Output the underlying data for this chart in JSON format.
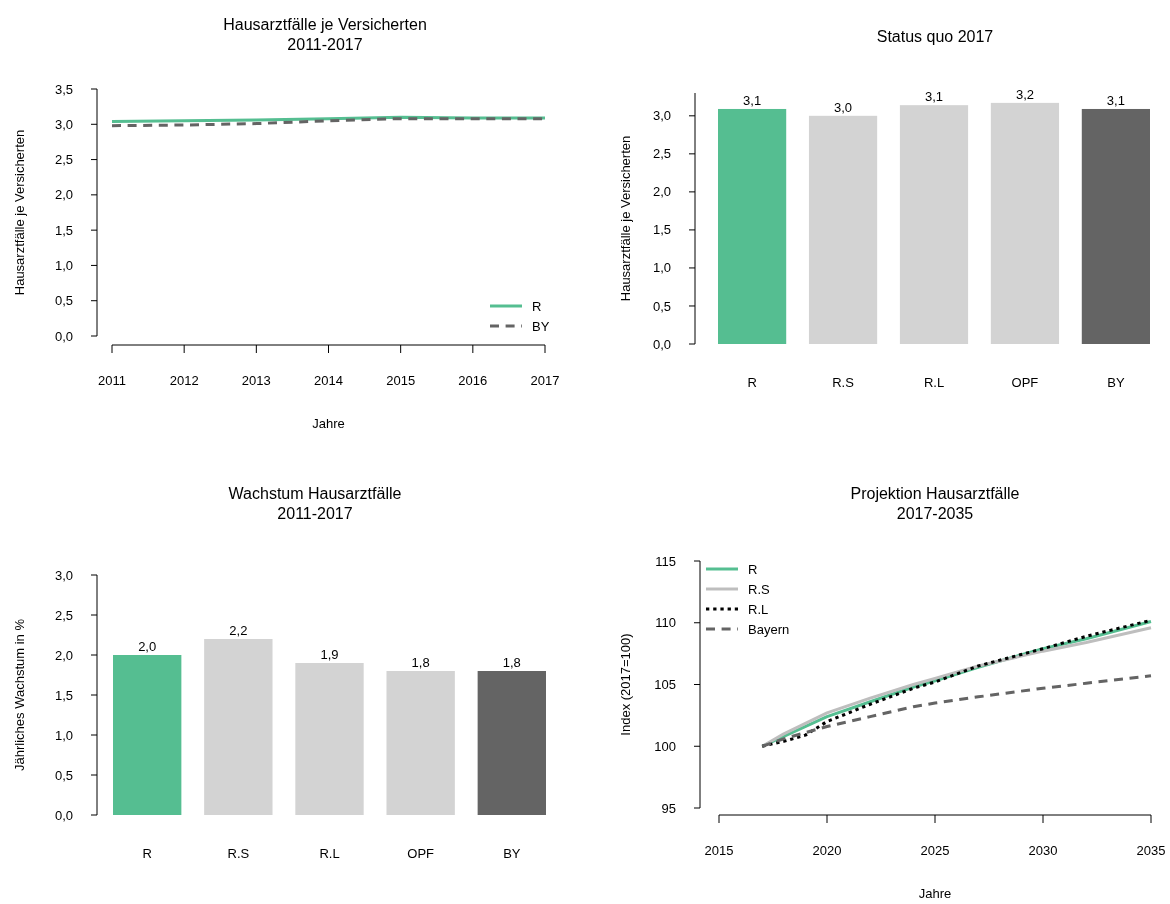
{
  "chart_data": [
    {
      "type": "line",
      "title": "Hausarztfälle je Versicherten",
      "subtitle": "2011-2017",
      "xlabel": "Jahre",
      "ylabel": "Hausarztfälle je Versicherten",
      "x": [
        2011,
        2012,
        2013,
        2014,
        2015,
        2016,
        2017
      ],
      "xlim": [
        2011,
        2017
      ],
      "xticks": [
        2011,
        2012,
        2013,
        2014,
        2015,
        2016,
        2017
      ],
      "ylim": [
        0,
        3.5
      ],
      "yticks": [
        {
          "value": 0,
          "label": "0,0"
        },
        {
          "value": 0.5,
          "label": "0,5"
        },
        {
          "value": 1,
          "label": "1,0"
        },
        {
          "value": 1.5,
          "label": "1,5"
        },
        {
          "value": 2,
          "label": "2,0"
        },
        {
          "value": 2.5,
          "label": "2,5"
        },
        {
          "value": 3,
          "label": "3,0"
        },
        {
          "value": 3.5,
          "label": "3,5"
        }
      ],
      "grid": false,
      "legend": "bottom right",
      "series": [
        {
          "name": "R",
          "color": "#55be91",
          "line_style": "solid",
          "values": [
            3.04,
            3.05,
            3.06,
            3.08,
            3.1,
            3.09,
            3.09
          ]
        },
        {
          "name": "BY",
          "color": "#646464",
          "line_style": "dashed",
          "values": [
            2.98,
            2.99,
            3.01,
            3.05,
            3.08,
            3.08,
            3.08
          ]
        }
      ]
    },
    {
      "type": "bar",
      "title": "Status quo 2017",
      "ylabel": "Hausarztfälle je Versicherten",
      "categories": [
        "R",
        "R.S",
        "R.L",
        "OPF",
        "BY"
      ],
      "values": [
        3.09,
        3.0,
        3.14,
        3.17,
        3.09
      ],
      "value_labels": [
        "3,1",
        "3,0",
        "3,1",
        "3,2",
        "3,1"
      ],
      "colors": [
        "#55be91",
        "#d3d3d3",
        "#d3d3d3",
        "#d3d3d3",
        "#646464"
      ],
      "ylim": [
        0,
        3.3
      ],
      "yticks": [
        {
          "value": 0,
          "label": "0,0"
        },
        {
          "value": 0.5,
          "label": "0,5"
        },
        {
          "value": 1,
          "label": "1,0"
        },
        {
          "value": 1.5,
          "label": "1,5"
        },
        {
          "value": 2,
          "label": "2,0"
        },
        {
          "value": 2.5,
          "label": "2,5"
        },
        {
          "value": 3,
          "label": "3,0"
        }
      ],
      "grid": false
    },
    {
      "type": "bar",
      "title": "Wachstum Hausarztfälle",
      "subtitle": "2011-2017",
      "ylabel": "Jährliches Wachstum in %",
      "categories": [
        "R",
        "R.S",
        "R.L",
        "OPF",
        "BY"
      ],
      "values": [
        2.0,
        2.2,
        1.9,
        1.8,
        1.8
      ],
      "value_labels": [
        "2,0",
        "2,2",
        "1,9",
        "1,8",
        "1,8"
      ],
      "colors": [
        "#55be91",
        "#d3d3d3",
        "#d3d3d3",
        "#d3d3d3",
        "#646464"
      ],
      "ylim": [
        0,
        3
      ],
      "yticks": [
        {
          "value": 0,
          "label": "0,0"
        },
        {
          "value": 0.5,
          "label": "0,5"
        },
        {
          "value": 1,
          "label": "1,0"
        },
        {
          "value": 1.5,
          "label": "1,5"
        },
        {
          "value": 2,
          "label": "2,0"
        },
        {
          "value": 2.5,
          "label": "2,5"
        },
        {
          "value": 3,
          "label": "3,0"
        }
      ],
      "grid": false
    },
    {
      "type": "line",
      "title": "Projektion Hausarztfälle",
      "subtitle": "2017-2035",
      "xlabel": "Jahre",
      "ylabel": "Index (2017=100)",
      "xlim": [
        2015,
        2035
      ],
      "xticks": [
        2015,
        2020,
        2025,
        2030,
        2035
      ],
      "ylim": [
        95,
        115
      ],
      "yticks": [
        95,
        100,
        105,
        110,
        115
      ],
      "grid": false,
      "legend": "top left",
      "series": [
        {
          "name": "R",
          "color": "#55be91",
          "line_style": "solid",
          "x": [
            2017,
            2018,
            2020,
            2022,
            2024,
            2025,
            2027,
            2030,
            2032,
            2035
          ],
          "values": [
            100,
            100.8,
            102.4,
            103.6,
            104.8,
            105.3,
            106.4,
            107.9,
            108.7,
            110.1
          ]
        },
        {
          "name": "R.S",
          "color": "#bebebe",
          "line_style": "solid",
          "x": [
            2017,
            2018,
            2020,
            2022,
            2024,
            2025,
            2027,
            2030,
            2032,
            2035
          ],
          "values": [
            100,
            101.0,
            102.7,
            103.9,
            105.0,
            105.5,
            106.5,
            107.7,
            108.4,
            109.6
          ]
        },
        {
          "name": "R.L",
          "color": "#000000",
          "line_style": "dotted",
          "x": [
            2017,
            2018,
            2019,
            2020,
            2022,
            2024,
            2025,
            2027,
            2030,
            2032,
            2035
          ],
          "values": [
            100,
            100.4,
            100.9,
            102.0,
            103.4,
            104.7,
            105.2,
            106.5,
            107.9,
            108.9,
            110.2
          ]
        },
        {
          "name": "Bayern",
          "color": "#646464",
          "line_style": "dashed",
          "x": [
            2017,
            2018,
            2020,
            2022,
            2024,
            2025,
            2027,
            2030,
            2032,
            2035
          ],
          "values": [
            100,
            100.6,
            101.6,
            102.4,
            103.2,
            103.5,
            104.0,
            104.7,
            105.1,
            105.7
          ]
        }
      ]
    }
  ]
}
